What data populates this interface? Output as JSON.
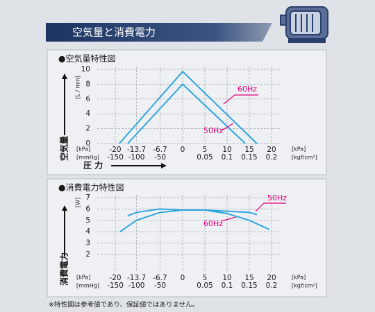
{
  "title": "空気量と消費電力",
  "footnote": "※特性図は参考値であり、保証値ではありません。",
  "chart_data": [
    {
      "type": "line",
      "title": "●空気量特性図",
      "y_unit": "[L / min]",
      "y_title": "空気量",
      "x_title": "圧 力",
      "x_units": {
        "left": [
          "[kPa]",
          "[mmHg]"
        ],
        "right": [
          "[kPa]",
          "[kgf/cm²]"
        ]
      },
      "xlim": [
        -20,
        20
      ],
      "xticks": [
        -20,
        -13.7,
        -6.7,
        0,
        5,
        10,
        15,
        20
      ],
      "mmhg_ticks": [
        {
          "value": -20,
          "label": "-150"
        },
        {
          "value": -13.7,
          "label": "-100"
        },
        {
          "value": -6.7,
          "label": "-50"
        }
      ],
      "kgf_ticks": [
        {
          "value": 5,
          "label": "0.05"
        },
        {
          "value": 10,
          "label": "0.1"
        },
        {
          "value": 15,
          "label": "0.15"
        },
        {
          "value": 20,
          "label": "0.2"
        }
      ],
      "ylim": [
        0,
        10
      ],
      "yticks": [
        0,
        2,
        4,
        6,
        8,
        10
      ],
      "grid": true,
      "series": [
        {
          "name": "60Hz",
          "color": "#2ea6de",
          "label_color": "#e4007f",
          "x": [
            -18.8,
            0,
            16.7
          ],
          "values": [
            0,
            9.7,
            0
          ]
        },
        {
          "name": "50Hz",
          "color": "#2ea6de",
          "label_color": "#e4007f",
          "x": [
            -16.3,
            0,
            14.1
          ],
          "values": [
            0,
            8.0,
            0
          ]
        }
      ]
    },
    {
      "type": "line",
      "title": "●消費電力特性図",
      "y_unit": "[W]",
      "y_title": "消費電力",
      "x_units": {
        "left": [
          "[kPa]",
          "[mmHg]"
        ],
        "right": [
          "[kPa]",
          "[kgf/cm²]"
        ]
      },
      "xlim": [
        -20,
        20
      ],
      "xticks": [
        -20,
        -13.7,
        -6.7,
        0,
        5,
        10,
        15,
        20
      ],
      "mmhg_ticks": [
        {
          "value": -20,
          "label": "-150"
        },
        {
          "value": -13.7,
          "label": "-100"
        },
        {
          "value": -6.7,
          "label": "-50"
        }
      ],
      "kgf_ticks": [
        {
          "value": 5,
          "label": "0.05"
        },
        {
          "value": 10,
          "label": "0.1"
        },
        {
          "value": 15,
          "label": "0.15"
        },
        {
          "value": 20,
          "label": "0.2"
        }
      ],
      "ylim": [
        0.5,
        7
      ],
      "yticks": [
        2,
        3,
        4,
        5,
        6,
        7
      ],
      "grid": true,
      "series": [
        {
          "name": "50Hz",
          "color": "#2ea6de",
          "label_color": "#e4007f",
          "x": [
            -16.3,
            -13.7,
            -6.7,
            0,
            5,
            10,
            15,
            16.7
          ],
          "values": [
            5.4,
            5.7,
            6.0,
            5.9,
            5.9,
            5.8,
            5.7,
            5.5
          ]
        },
        {
          "name": "60Hz",
          "color": "#2ea6de",
          "label_color": "#e4007f",
          "x": [
            -18.6,
            -13.7,
            -6.7,
            0,
            5,
            10,
            15,
            19.5
          ],
          "values": [
            4.0,
            5.0,
            5.7,
            5.9,
            5.9,
            5.6,
            5.0,
            4.2
          ]
        }
      ]
    }
  ]
}
